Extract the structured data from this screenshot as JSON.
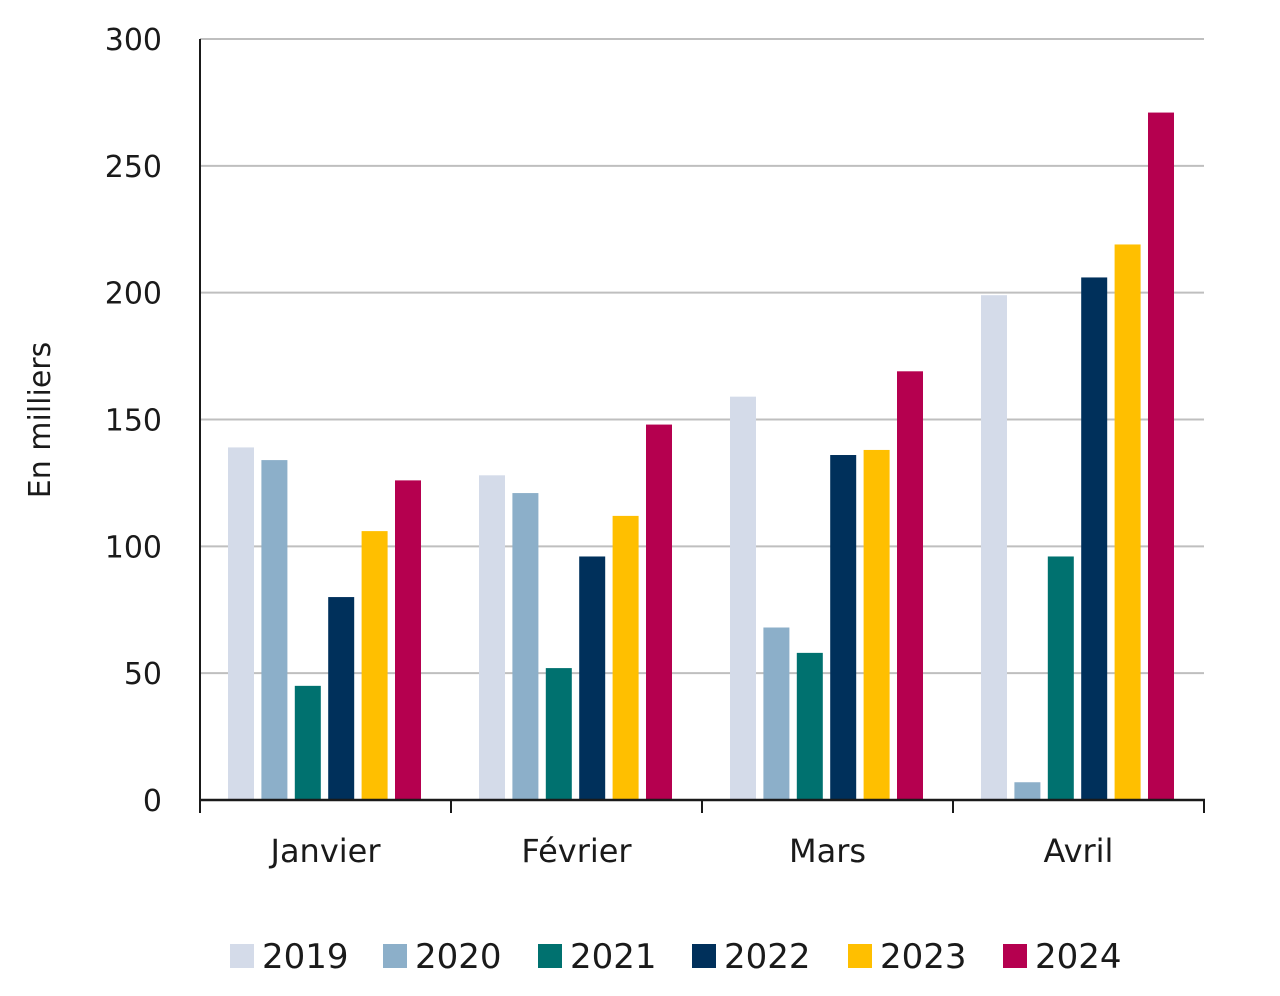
{
  "chart_data": {
    "type": "bar",
    "ylabel": "En milliers",
    "xlabel": "",
    "ylim": [
      0,
      300
    ],
    "yticks": [
      0,
      50,
      100,
      150,
      200,
      250,
      300
    ],
    "grid": true,
    "legend_position": "bottom",
    "categories": [
      "Janvier",
      "Février",
      "Mars",
      "Avril"
    ],
    "series": [
      {
        "name": "2019",
        "color": "#d4dbe9",
        "values": [
          139,
          128,
          159,
          199
        ]
      },
      {
        "name": "2020",
        "color": "#8cafc9",
        "values": [
          134,
          121,
          68,
          7
        ]
      },
      {
        "name": "2021",
        "color": "#00716f",
        "values": [
          45,
          52,
          58,
          96
        ]
      },
      {
        "name": "2022",
        "color": "#00305b",
        "values": [
          80,
          96,
          136,
          206
        ]
      },
      {
        "name": "2023",
        "color": "#ffbf00",
        "values": [
          106,
          112,
          138,
          219
        ]
      },
      {
        "name": "2024",
        "color": "#b5004f",
        "values": [
          126,
          148,
          169,
          271
        ]
      }
    ]
  }
}
